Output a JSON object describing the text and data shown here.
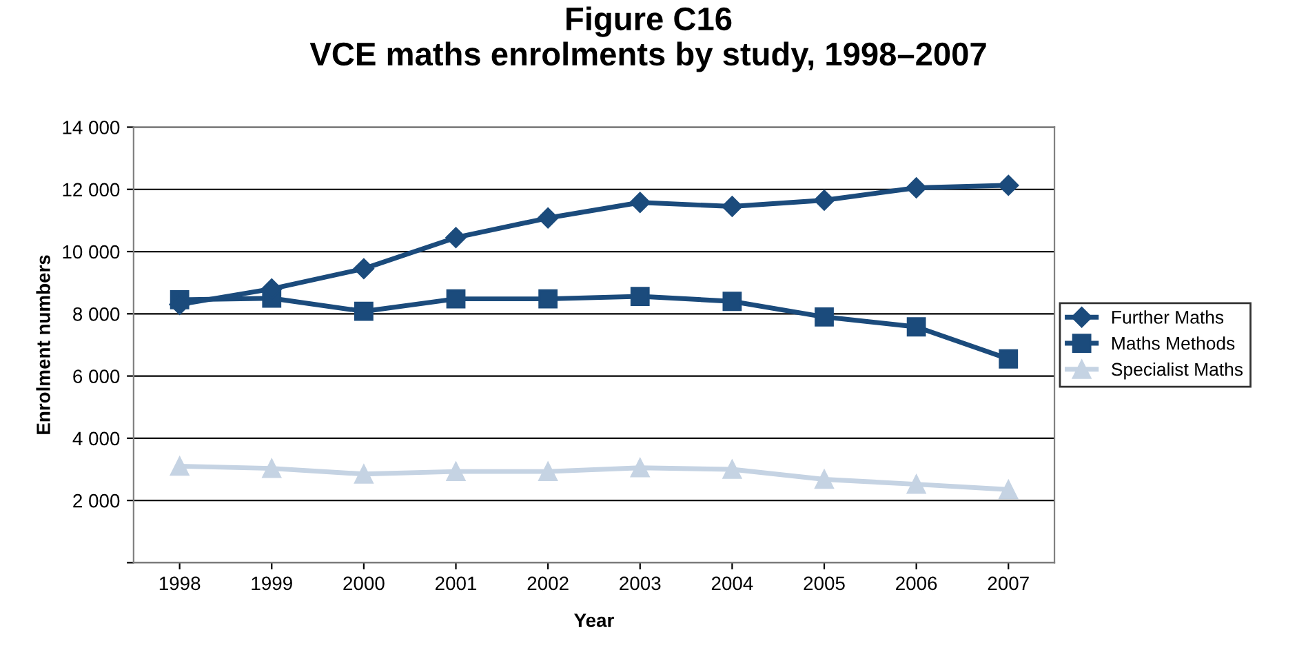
{
  "chart_data": {
    "type": "line",
    "title": "Figure C16\nVCE maths enrolments by study, 1998–2007",
    "xlabel": "Year",
    "ylabel": "Enrolment numbers",
    "categories": [
      "1998",
      "1999",
      "2000",
      "2001",
      "2002",
      "2003",
      "2004",
      "2005",
      "2006",
      "2007"
    ],
    "series": [
      {
        "name": "Further Maths",
        "color": "#1b4b7c",
        "marker": "diamond",
        "values": [
          8300,
          8800,
          9450,
          10450,
          11080,
          11580,
          11450,
          11650,
          12050,
          12130
        ]
      },
      {
        "name": "Maths Methods",
        "color": "#1b4b7c",
        "marker": "square",
        "values": [
          8450,
          8500,
          8080,
          8480,
          8480,
          8560,
          8400,
          7900,
          7580,
          6550
        ]
      },
      {
        "name": "Specialist Maths",
        "color": "#c5d3e3",
        "marker": "triangle",
        "values": [
          3100,
          3030,
          2850,
          2930,
          2930,
          3050,
          3000,
          2680,
          2520,
          2350
        ]
      }
    ],
    "ylim": [
      0,
      14000
    ],
    "yticks": [
      {
        "value": 0,
        "label": null
      },
      {
        "value": 2000,
        "label": "2 000"
      },
      {
        "value": 4000,
        "label": "4 000"
      },
      {
        "value": 6000,
        "label": "6 000"
      },
      {
        "value": 8000,
        "label": "8 000"
      },
      {
        "value": 10000,
        "label": "10 000"
      },
      {
        "value": 12000,
        "label": "12 000"
      },
      {
        "value": 14000,
        "label": "14 000"
      }
    ],
    "grid": "y",
    "legend": "right",
    "line_style": "solid"
  }
}
